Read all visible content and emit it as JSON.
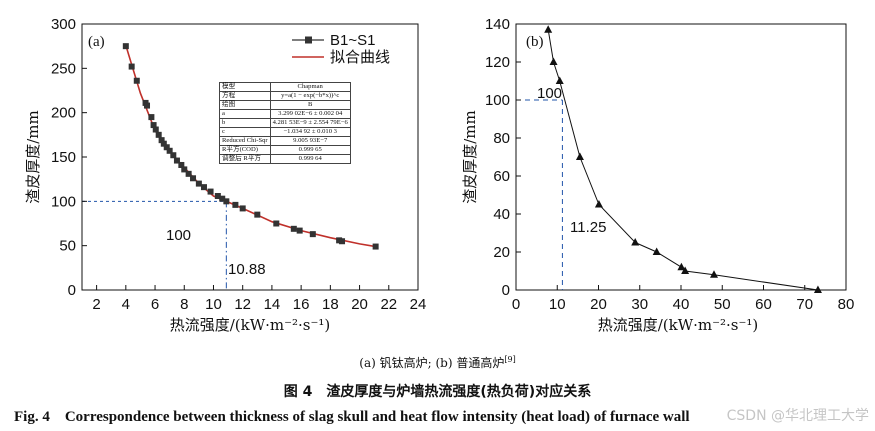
{
  "chart_data": [
    {
      "type": "scatter",
      "panel_label": "(a)",
      "xlabel": "热流强度/(kW·m⁻²·s⁻¹)",
      "ylabel": "渣皮厚度/mm",
      "xlim": [
        1,
        24
      ],
      "ylim": [
        0,
        300
      ],
      "xticks": [
        2,
        4,
        6,
        8,
        10,
        12,
        14,
        16,
        18,
        20,
        22,
        24
      ],
      "yticks": [
        0,
        50,
        100,
        150,
        200,
        250,
        300
      ],
      "legend_position": "top-right",
      "series": [
        {
          "name": "B1~S1",
          "marker": "square",
          "color": "#333333",
          "x": [
            4.0,
            4.4,
            4.75,
            5.35,
            5.45,
            5.75,
            5.9,
            6.05,
            6.25,
            6.45,
            6.6,
            6.8,
            7.0,
            7.25,
            7.5,
            7.8,
            8.0,
            8.3,
            8.6,
            9.0,
            9.35,
            9.8,
            10.3,
            10.6,
            10.88,
            11.5,
            12.0,
            13.0,
            14.3,
            15.5,
            15.9,
            16.8,
            18.6,
            18.8,
            21.1
          ],
          "y": [
            275,
            252,
            236,
            211,
            208,
            195,
            186,
            181,
            175,
            169,
            165,
            161,
            157,
            152,
            146,
            141,
            136,
            131,
            126,
            120,
            116,
            111,
            106,
            103,
            100,
            96,
            92,
            85,
            75,
            69,
            67,
            63,
            56,
            55,
            49
          ]
        },
        {
          "name": "拟合曲线",
          "type": "line",
          "color": "#c0302a",
          "x": [
            4.0,
            5.0,
            6.0,
            7.0,
            8.0,
            9.0,
            10.0,
            10.88,
            12.0,
            14.0,
            16.0,
            18.0,
            20.0,
            21.1
          ],
          "y": [
            276,
            222,
            180,
            156,
            138,
            120,
            106,
            100,
            92,
            77,
            67,
            59,
            52,
            49
          ]
        }
      ],
      "annotations": [
        {
          "text": "100",
          "y": 100,
          "style": "dashed-horizontal",
          "color": "#2255aa"
        },
        {
          "text": "10.88",
          "x": 10.88,
          "style": "dash-dot-vertical",
          "color": "#2255aa"
        }
      ],
      "fit_table": {
        "rows": [
          [
            "模型",
            "Chapman"
          ],
          [
            "方程",
            "y=a(1 − exp(−b*x))^c"
          ],
          [
            "绘图",
            "B"
          ],
          [
            "a",
            "3.299 02E−6 ± 0.002 04"
          ],
          [
            "b",
            "4.281 53E−9 ± 2.554 79E−6"
          ],
          [
            "c",
            "−1.034 92 ± 0.010 3"
          ],
          [
            "Reduced Chi-Sqr",
            "9.005 93E−7"
          ],
          [
            "R平方(COD)",
            "0.999 65"
          ],
          [
            "调整后 R平方",
            "0.999 64"
          ]
        ]
      }
    },
    {
      "type": "line",
      "panel_label": "(b)",
      "xlabel": "热流强度/(kW·m⁻²·s⁻¹)",
      "ylabel": "渣皮厚度/mm",
      "xlim": [
        0,
        80
      ],
      "ylim": [
        0,
        140
      ],
      "xticks": [
        0,
        10,
        20,
        30,
        40,
        50,
        60,
        70,
        80
      ],
      "yticks": [
        0,
        20,
        40,
        60,
        80,
        100,
        120,
        140
      ],
      "series": [
        {
          "name": "",
          "marker": "triangle",
          "color": "#111111",
          "x": [
            7.8,
            9.1,
            10.6,
            15.5,
            20.1,
            28.9,
            34.1,
            40.1,
            41.0,
            48.0,
            73.2
          ],
          "y": [
            137,
            120,
            110,
            70,
            45,
            25,
            20,
            12,
            10,
            8,
            0
          ]
        }
      ],
      "annotations": [
        {
          "text": "100",
          "y": 100,
          "style": "dashed-horizontal",
          "color": "#2255aa"
        },
        {
          "text": "11.25",
          "x": 11.25,
          "style": "dashed-vertical",
          "color": "#2255aa"
        }
      ]
    }
  ],
  "captions": {
    "sub": "(a) 钒钛高炉; (b) 普通高炉",
    "sub_ref": "[9]",
    "zh": "图 4　渣皮厚度与炉墙热流强度(热负荷)对应关系",
    "en": "Fig. 4　Correspondence between thickness of slag skull and heat flow intensity (heat load) of furnace wall",
    "watermark": "CSDN @华北理工大学"
  }
}
